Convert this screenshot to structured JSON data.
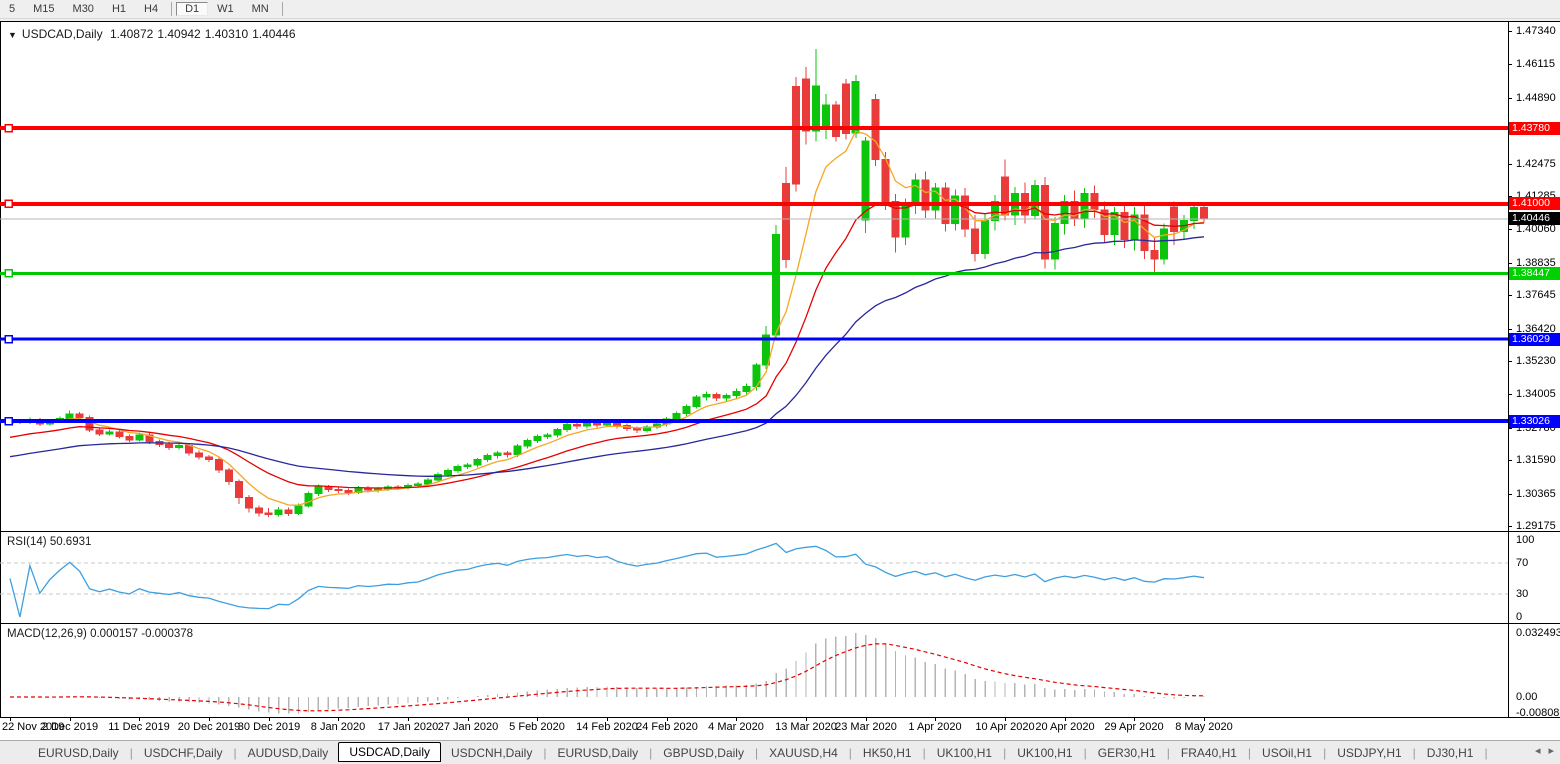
{
  "toolbar": {
    "timeframes": [
      {
        "label": "5",
        "active": false,
        "sep_before": false,
        "sep_after": false
      },
      {
        "label": "M15",
        "active": false,
        "sep_before": false,
        "sep_after": false
      },
      {
        "label": "M30",
        "active": false,
        "sep_before": false,
        "sep_after": false
      },
      {
        "label": "H1",
        "active": false,
        "sep_before": false,
        "sep_after": false
      },
      {
        "label": "H4",
        "active": false,
        "sep_before": false,
        "sep_after": false
      },
      {
        "label": "D1",
        "active": true,
        "sep_before": true,
        "sep_after": false
      },
      {
        "label": "W1",
        "active": false,
        "sep_before": false,
        "sep_after": false
      },
      {
        "label": "MN",
        "active": false,
        "sep_before": false,
        "sep_after": true
      }
    ]
  },
  "window": {
    "dropdown_icon": "▼",
    "title_symbol": "USDCAD,Daily",
    "ohlc": {
      "open": "1.40872",
      "high": "1.40942",
      "low": "1.40310",
      "close": "1.40446"
    }
  },
  "price_axis": {
    "ticks": [
      "1.47340",
      "1.46115",
      "1.44890",
      "1.42475",
      "1.41285",
      "1.40060",
      "1.38835",
      "1.37645",
      "1.36420",
      "1.35230",
      "1.34005",
      "1.32780",
      "1.31590",
      "1.30365",
      "1.29175"
    ],
    "line_labels": [
      {
        "text": "1.43780",
        "value": 1.4378,
        "bg": "#ff0000",
        "fg": "#ffffff"
      },
      {
        "text": "1.41000",
        "value": 1.41,
        "bg": "#ff0000",
        "fg": "#ffffff"
      },
      {
        "text": "1.40446",
        "value": 1.40446,
        "bg": "#000000",
        "fg": "#ffffff"
      },
      {
        "text": "1.38447",
        "value": 1.38447,
        "bg": "#00d000",
        "fg": "#ffffff"
      },
      {
        "text": "1.36029",
        "value": 1.36029,
        "bg": "#0000ff",
        "fg": "#ffffff"
      },
      {
        "text": "1.33026",
        "value": 1.33026,
        "bg": "#0000ff",
        "fg": "#ffffff"
      }
    ]
  },
  "chart_data": {
    "type": "candlestick",
    "symbol": "USDCAD",
    "timeframe": "Daily",
    "ylim": [
      1.28992,
      1.47671
    ],
    "x_ticks": [
      {
        "label": "22 Nov 2019",
        "i": 0
      },
      {
        "label": "2 Dec 2019",
        "i": 6
      },
      {
        "label": "11 Dec 2019",
        "i": 13
      },
      {
        "label": "20 Dec 2019",
        "i": 20
      },
      {
        "label": "30 Dec 2019",
        "i": 26
      },
      {
        "label": "8 Jan 2020",
        "i": 33
      },
      {
        "label": "17 Jan 2020",
        "i": 40
      },
      {
        "label": "27 Jan 2020",
        "i": 46
      },
      {
        "label": "5 Feb 2020",
        "i": 53
      },
      {
        "label": "14 Feb 2020",
        "i": 60
      },
      {
        "label": "24 Feb 2020",
        "i": 66
      },
      {
        "label": "4 Mar 2020",
        "i": 73
      },
      {
        "label": "13 Mar 2020",
        "i": 80
      },
      {
        "label": "23 Mar 2020",
        "i": 86
      },
      {
        "label": "1 Apr 2020",
        "i": 93
      },
      {
        "label": "10 Apr 2020",
        "i": 100
      },
      {
        "label": "20 Apr 2020",
        "i": 106
      },
      {
        "label": "29 Apr 2020",
        "i": 113
      },
      {
        "label": "8 May 2020",
        "i": 120
      }
    ],
    "ohlc": [
      [
        1.3295,
        1.3315,
        1.3288,
        1.3302
      ],
      [
        1.3302,
        1.3311,
        1.3291,
        1.3298
      ],
      [
        1.3298,
        1.3315,
        1.3292,
        1.3306
      ],
      [
        1.3306,
        1.3313,
        1.3284,
        1.3292
      ],
      [
        1.3292,
        1.3309,
        1.3286,
        1.3301
      ],
      [
        1.3301,
        1.332,
        1.3295,
        1.3312
      ],
      [
        1.3312,
        1.3342,
        1.3306,
        1.3328
      ],
      [
        1.3328,
        1.3336,
        1.3308,
        1.3316
      ],
      [
        1.3316,
        1.3323,
        1.3262,
        1.327
      ],
      [
        1.327,
        1.3278,
        1.3247,
        1.3256
      ],
      [
        1.3256,
        1.3271,
        1.3249,
        1.3263
      ],
      [
        1.3263,
        1.327,
        1.3238,
        1.3246
      ],
      [
        1.3246,
        1.3254,
        1.3225,
        1.3234
      ],
      [
        1.3234,
        1.326,
        1.3228,
        1.3252
      ],
      [
        1.3252,
        1.3258,
        1.3219,
        1.3227
      ],
      [
        1.3227,
        1.3235,
        1.3208,
        1.3217
      ],
      [
        1.3217,
        1.3226,
        1.3196,
        1.3206
      ],
      [
        1.3206,
        1.3222,
        1.3199,
        1.3213
      ],
      [
        1.3213,
        1.3219,
        1.3177,
        1.3186
      ],
      [
        1.3186,
        1.3194,
        1.3162,
        1.3171
      ],
      [
        1.3171,
        1.3179,
        1.3152,
        1.3162
      ],
      [
        1.3162,
        1.3169,
        1.3112,
        1.3123
      ],
      [
        1.3123,
        1.3131,
        1.3068,
        1.308
      ],
      [
        1.308,
        1.3088,
        1.2998,
        1.3022
      ],
      [
        1.3022,
        1.3031,
        1.2968,
        1.2983
      ],
      [
        1.2983,
        1.2992,
        1.2952,
        1.2966
      ],
      [
        1.2966,
        1.2984,
        1.295,
        1.2959
      ],
      [
        1.2959,
        1.2988,
        1.2953,
        1.2977
      ],
      [
        1.2977,
        1.2985,
        1.2955,
        1.2964
      ],
      [
        1.2964,
        1.3,
        1.2958,
        1.2991
      ],
      [
        1.2991,
        1.3044,
        1.2985,
        1.3036
      ],
      [
        1.3036,
        1.307,
        1.3028,
        1.3061
      ],
      [
        1.3061,
        1.3068,
        1.3042,
        1.3051
      ],
      [
        1.3051,
        1.3059,
        1.3038,
        1.3047
      ],
      [
        1.3047,
        1.3055,
        1.3031,
        1.3041
      ],
      [
        1.3041,
        1.3064,
        1.3035,
        1.3057
      ],
      [
        1.3057,
        1.3064,
        1.304,
        1.3049
      ],
      [
        1.3049,
        1.3061,
        1.3041,
        1.3054
      ],
      [
        1.3054,
        1.3068,
        1.3046,
        1.3061
      ],
      [
        1.3061,
        1.3068,
        1.305,
        1.3059
      ],
      [
        1.3059,
        1.3074,
        1.3051,
        1.3067
      ],
      [
        1.3067,
        1.3079,
        1.3058,
        1.3071
      ],
      [
        1.3071,
        1.3094,
        1.3063,
        1.3087
      ],
      [
        1.3087,
        1.3114,
        1.3079,
        1.3107
      ],
      [
        1.3107,
        1.3128,
        1.3098,
        1.3121
      ],
      [
        1.3121,
        1.3143,
        1.3112,
        1.3136
      ],
      [
        1.3136,
        1.3149,
        1.3126,
        1.3141
      ],
      [
        1.3141,
        1.3168,
        1.3133,
        1.3161
      ],
      [
        1.3161,
        1.3183,
        1.3152,
        1.3176
      ],
      [
        1.3176,
        1.3193,
        1.3166,
        1.3186
      ],
      [
        1.3186,
        1.3193,
        1.3169,
        1.3179
      ],
      [
        1.3179,
        1.3218,
        1.3171,
        1.3211
      ],
      [
        1.3211,
        1.3238,
        1.3202,
        1.3231
      ],
      [
        1.3231,
        1.3253,
        1.3222,
        1.3246
      ],
      [
        1.3246,
        1.3259,
        1.3236,
        1.3251
      ],
      [
        1.3251,
        1.3278,
        1.3243,
        1.3271
      ],
      [
        1.3271,
        1.3297,
        1.3262,
        1.329
      ],
      [
        1.329,
        1.3297,
        1.3274,
        1.3284
      ],
      [
        1.3284,
        1.3303,
        1.3276,
        1.3296
      ],
      [
        1.3296,
        1.3303,
        1.3279,
        1.3289
      ],
      [
        1.3289,
        1.3308,
        1.3281,
        1.3301
      ],
      [
        1.3301,
        1.3308,
        1.3276,
        1.3286
      ],
      [
        1.3286,
        1.3293,
        1.3266,
        1.3276
      ],
      [
        1.3276,
        1.3283,
        1.3259,
        1.3269
      ],
      [
        1.3269,
        1.3288,
        1.3261,
        1.3281
      ],
      [
        1.3281,
        1.3298,
        1.3273,
        1.3291
      ],
      [
        1.3291,
        1.3318,
        1.3283,
        1.3311
      ],
      [
        1.3311,
        1.3338,
        1.3302,
        1.3331
      ],
      [
        1.3331,
        1.3364,
        1.3322,
        1.3357
      ],
      [
        1.3357,
        1.3398,
        1.3348,
        1.3391
      ],
      [
        1.3391,
        1.3412,
        1.3378,
        1.3401
      ],
      [
        1.3401,
        1.3408,
        1.3376,
        1.3387
      ],
      [
        1.3387,
        1.3403,
        1.3374,
        1.3396
      ],
      [
        1.3396,
        1.3422,
        1.3382,
        1.3411
      ],
      [
        1.3411,
        1.344,
        1.3398,
        1.3429
      ],
      [
        1.3429,
        1.3516,
        1.3415,
        1.3508
      ],
      [
        1.3508,
        1.3652,
        1.3494,
        1.3618
      ],
      [
        1.3618,
        1.4022,
        1.3598,
        1.3988
      ],
      [
        1.4175,
        1.4235,
        1.3865,
        1.3895
      ],
      [
        1.453,
        1.4565,
        1.4145,
        1.4172
      ],
      [
        1.4558,
        1.4602,
        1.4318,
        1.4368
      ],
      [
        1.4368,
        1.4668,
        1.4328,
        1.4532
      ],
      [
        1.438,
        1.4502,
        1.4338,
        1.4463
      ],
      [
        1.4462,
        1.4478,
        1.4328,
        1.4347
      ],
      [
        1.454,
        1.4558,
        1.4336,
        1.4358
      ],
      [
        1.436,
        1.4572,
        1.4342,
        1.4548
      ],
      [
        1.404,
        1.4345,
        1.3992,
        1.433
      ],
      [
        1.4482,
        1.4502,
        1.4238,
        1.4262
      ],
      [
        1.4262,
        1.429,
        1.4078,
        1.4108
      ],
      [
        1.4108,
        1.4135,
        1.3922,
        1.3978
      ],
      [
        1.3978,
        1.412,
        1.3948,
        1.4098
      ],
      [
        1.4098,
        1.4212,
        1.4062,
        1.4188
      ],
      [
        1.4188,
        1.4218,
        1.4048,
        1.4078
      ],
      [
        1.4078,
        1.4176,
        1.4042,
        1.4158
      ],
      [
        1.4158,
        1.4178,
        1.3998,
        1.4028
      ],
      [
        1.4028,
        1.4152,
        1.4002,
        1.4128
      ],
      [
        1.4128,
        1.4158,
        1.3978,
        1.4008
      ],
      [
        1.4008,
        1.4058,
        1.3888,
        1.3918
      ],
      [
        1.3918,
        1.4062,
        1.3898,
        1.4038
      ],
      [
        1.4038,
        1.4132,
        1.4002,
        1.4108
      ],
      [
        1.4198,
        1.4262,
        1.4038,
        1.4058
      ],
      [
        1.4058,
        1.4162,
        1.4022,
        1.4138
      ],
      [
        1.4138,
        1.4178,
        1.4028,
        1.4058
      ],
      [
        1.4058,
        1.4188,
        1.4042,
        1.4168
      ],
      [
        1.4168,
        1.4198,
        1.3862,
        1.3898
      ],
      [
        1.3898,
        1.4052,
        1.3858,
        1.4028
      ],
      [
        1.4028,
        1.4132,
        1.3988,
        1.4108
      ],
      [
        1.4108,
        1.4148,
        1.4018,
        1.4048
      ],
      [
        1.4048,
        1.4158,
        1.4012,
        1.4138
      ],
      [
        1.4138,
        1.4168,
        1.4048,
        1.4078
      ],
      [
        1.4078,
        1.4108,
        1.3958,
        1.3988
      ],
      [
        1.3988,
        1.4088,
        1.3948,
        1.4068
      ],
      [
        1.4068,
        1.4098,
        1.3938,
        1.3968
      ],
      [
        1.3968,
        1.4088,
        1.3928,
        1.4058
      ],
      [
        1.4058,
        1.4098,
        1.3898,
        1.3928
      ],
      [
        1.3928,
        1.3978,
        1.3848,
        1.3898
      ],
      [
        1.3898,
        1.4028,
        1.3878,
        1.4008
      ],
      [
        1.4088,
        1.4108,
        1.3948,
        1.3998
      ],
      [
        1.3998,
        1.4058,
        1.3968,
        1.4038
      ],
      [
        1.4038,
        1.4094,
        1.4008,
        1.4087
      ],
      [
        1.40872,
        1.40942,
        1.4031,
        1.40446
      ]
    ],
    "moving_averages": [
      {
        "name": "fast",
        "period": 6,
        "color": "#f5a623"
      },
      {
        "name": "mid",
        "period": 16,
        "color": "#e60000"
      },
      {
        "name": "slow",
        "period": 40,
        "color": "#28289b"
      }
    ],
    "hlines": [
      {
        "value": 1.4378,
        "color": "#ff0000",
        "width": 4
      },
      {
        "value": 1.41,
        "color": "#ff0000",
        "width": 4
      },
      {
        "value": 1.38447,
        "color": "#00c800",
        "width": 3
      },
      {
        "value": 1.36029,
        "color": "#0000ff",
        "width": 3
      },
      {
        "value": 1.33026,
        "color": "#0000ff",
        "width": 4
      }
    ],
    "current_price": 1.40446,
    "colors": {
      "bull": "#0cc40c",
      "bear": "#ea3b3b",
      "rsi": "#3d9fe0",
      "macd_hist": "#b4b4b4",
      "macd_signal": "#e60000",
      "grid_dash": "#c8c8c8",
      "current_line": "#b4b4b4"
    },
    "indicators": {
      "rsi": {
        "label": "RSI(14) 50.6931",
        "period": 14,
        "levels": [
          {
            "text": "100",
            "value": 100,
            "dashed": false
          },
          {
            "text": "70",
            "value": 70,
            "dashed": true
          },
          {
            "text": "30",
            "value": 30,
            "dashed": true
          },
          {
            "text": "0",
            "value": 0,
            "dashed": false
          }
        ]
      },
      "macd": {
        "label": "MACD(12,26,9) 0.000157 -0.000378",
        "fast": 12,
        "slow": 26,
        "signal": 9,
        "axis": [
          {
            "text": "0.032493",
            "value": 0.032493
          },
          {
            "text": "0.00",
            "value": 0
          },
          {
            "text": "-0.008086",
            "value": -0.008086
          }
        ]
      }
    }
  },
  "tabs": {
    "items": [
      {
        "label": "EURUSD,Daily",
        "active": false
      },
      {
        "label": "USDCHF,Daily",
        "active": false
      },
      {
        "label": "AUDUSD,Daily",
        "active": false
      },
      {
        "label": "USDCAD,Daily",
        "active": true
      },
      {
        "label": "USDCNH,Daily",
        "active": false
      },
      {
        "label": "EURUSD,Daily",
        "active": false
      },
      {
        "label": "GBPUSD,Daily",
        "active": false
      },
      {
        "label": "XAUUSD,H4",
        "active": false
      },
      {
        "label": "HK50,H1",
        "active": false
      },
      {
        "label": "UK100,H1",
        "active": false
      },
      {
        "label": "UK100,H1",
        "active": false
      },
      {
        "label": "GER30,H1",
        "active": false
      },
      {
        "label": "FRA40,H1",
        "active": false
      },
      {
        "label": "USOil,H1",
        "active": false
      },
      {
        "label": "USDJPY,H1",
        "active": false
      },
      {
        "label": "DJ30,H1",
        "active": false
      }
    ],
    "nav": {
      "left": "◂",
      "right": "▸"
    }
  }
}
